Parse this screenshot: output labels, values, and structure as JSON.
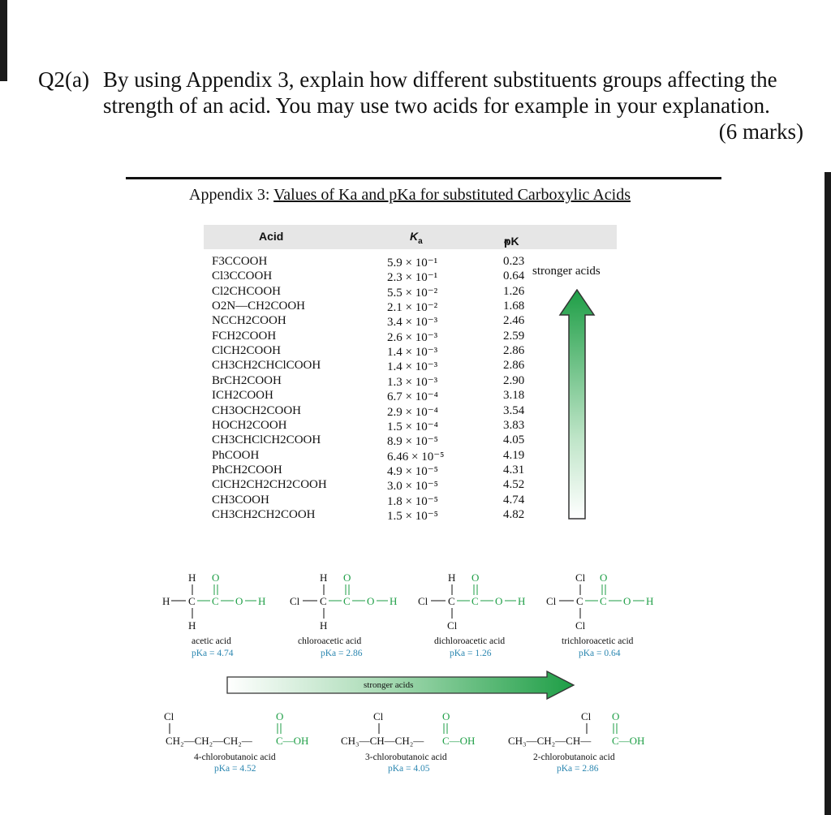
{
  "question": {
    "label": "Q2(a)",
    "line1": "By using Appendix 3, explain how different substituents groups affecting the",
    "line2": "strength of an acid. You may use two acids for example in your explanation.",
    "marks": "(6 marks)"
  },
  "appendix": {
    "prefix": "Appendix 3: ",
    "title": "Values of Ka and pKa for substituted Carboxylic Acids"
  },
  "table": {
    "headers": {
      "acid": "Acid",
      "ka": "K",
      "ka_sub": "a",
      "pka": "pK",
      "pka_sub": "a"
    },
    "stronger_label": "stronger acids",
    "rows": [
      {
        "acid": "F3CCOOH",
        "ka": "5.9 × 10⁻¹",
        "pka": "0.23"
      },
      {
        "acid": "Cl3CCOOH",
        "ka": "2.3 × 10⁻¹",
        "pka": "0.64"
      },
      {
        "acid": "Cl2CHCOOH",
        "ka": "5.5 × 10⁻²",
        "pka": "1.26"
      },
      {
        "acid": "O2N—CH2COOH",
        "ka": "2.1 × 10⁻²",
        "pka": "1.68"
      },
      {
        "acid": "NCCH2COOH",
        "ka": "3.4 × 10⁻³",
        "pka": "2.46"
      },
      {
        "acid": "FCH2COOH",
        "ka": "2.6 × 10⁻³",
        "pka": "2.59"
      },
      {
        "acid": "ClCH2COOH",
        "ka": "1.4 × 10⁻³",
        "pka": "2.86"
      },
      {
        "acid": "CH3CH2CHClCOOH",
        "ka": "1.4 × 10⁻³",
        "pka": "2.86"
      },
      {
        "acid": "BrCH2COOH",
        "ka": "1.3 × 10⁻³",
        "pka": "2.90"
      },
      {
        "acid": "ICH2COOH",
        "ka": "6.7 × 10⁻⁴",
        "pka": "3.18"
      },
      {
        "acid": "CH3OCH2COOH",
        "ka": "2.9 × 10⁻⁴",
        "pka": "3.54"
      },
      {
        "acid": "HOCH2COOH",
        "ka": "1.5 × 10⁻⁴",
        "pka": "3.83"
      },
      {
        "acid": "CH3CHClCH2COOH",
        "ka": "8.9 × 10⁻⁵",
        "pka": "4.05"
      },
      {
        "acid": "PhCOOH",
        "ka": "6.46 × 10⁻⁵",
        "pka": "4.19"
      },
      {
        "acid": "PhCH2COOH",
        "ka": "4.9 × 10⁻⁵",
        "pka": "4.31"
      },
      {
        "acid": "ClCH2CH2CH2COOH",
        "ka": "3.0 × 10⁻⁵",
        "pka": "4.52"
      },
      {
        "acid": "CH3COOH",
        "ka": "1.8 × 10⁻⁵",
        "pka": "4.74"
      },
      {
        "acid": "CH3CH2CH2COOH",
        "ka": "1.5 × 10⁻⁵",
        "pka": "4.82"
      }
    ]
  },
  "figure": {
    "top_row": [
      {
        "name": "acetic acid",
        "pka": "pKa = 4.74"
      },
      {
        "name": "chloroacetic acid",
        "pka": "pKa = 2.86"
      },
      {
        "name": "dichloroacetic acid",
        "pka": "pKa = 1.26"
      },
      {
        "name": "trichloroacetic acid",
        "pka": "pKa = 0.64"
      }
    ],
    "arrow_label": "stronger acids",
    "bottom_row": [
      {
        "name": "4-chlorobutanoic acid",
        "pka": "pKa = 4.52"
      },
      {
        "name": "3-chlorobutanoic acid",
        "pka": "pKa = 4.05"
      },
      {
        "name": "2-chlorobutanoic acid",
        "pka": "pKa = 2.86"
      }
    ]
  },
  "colors": {
    "green": "#1e9e46",
    "blue_text": "#2a86b0",
    "header_grey": "#e6e6e6"
  }
}
